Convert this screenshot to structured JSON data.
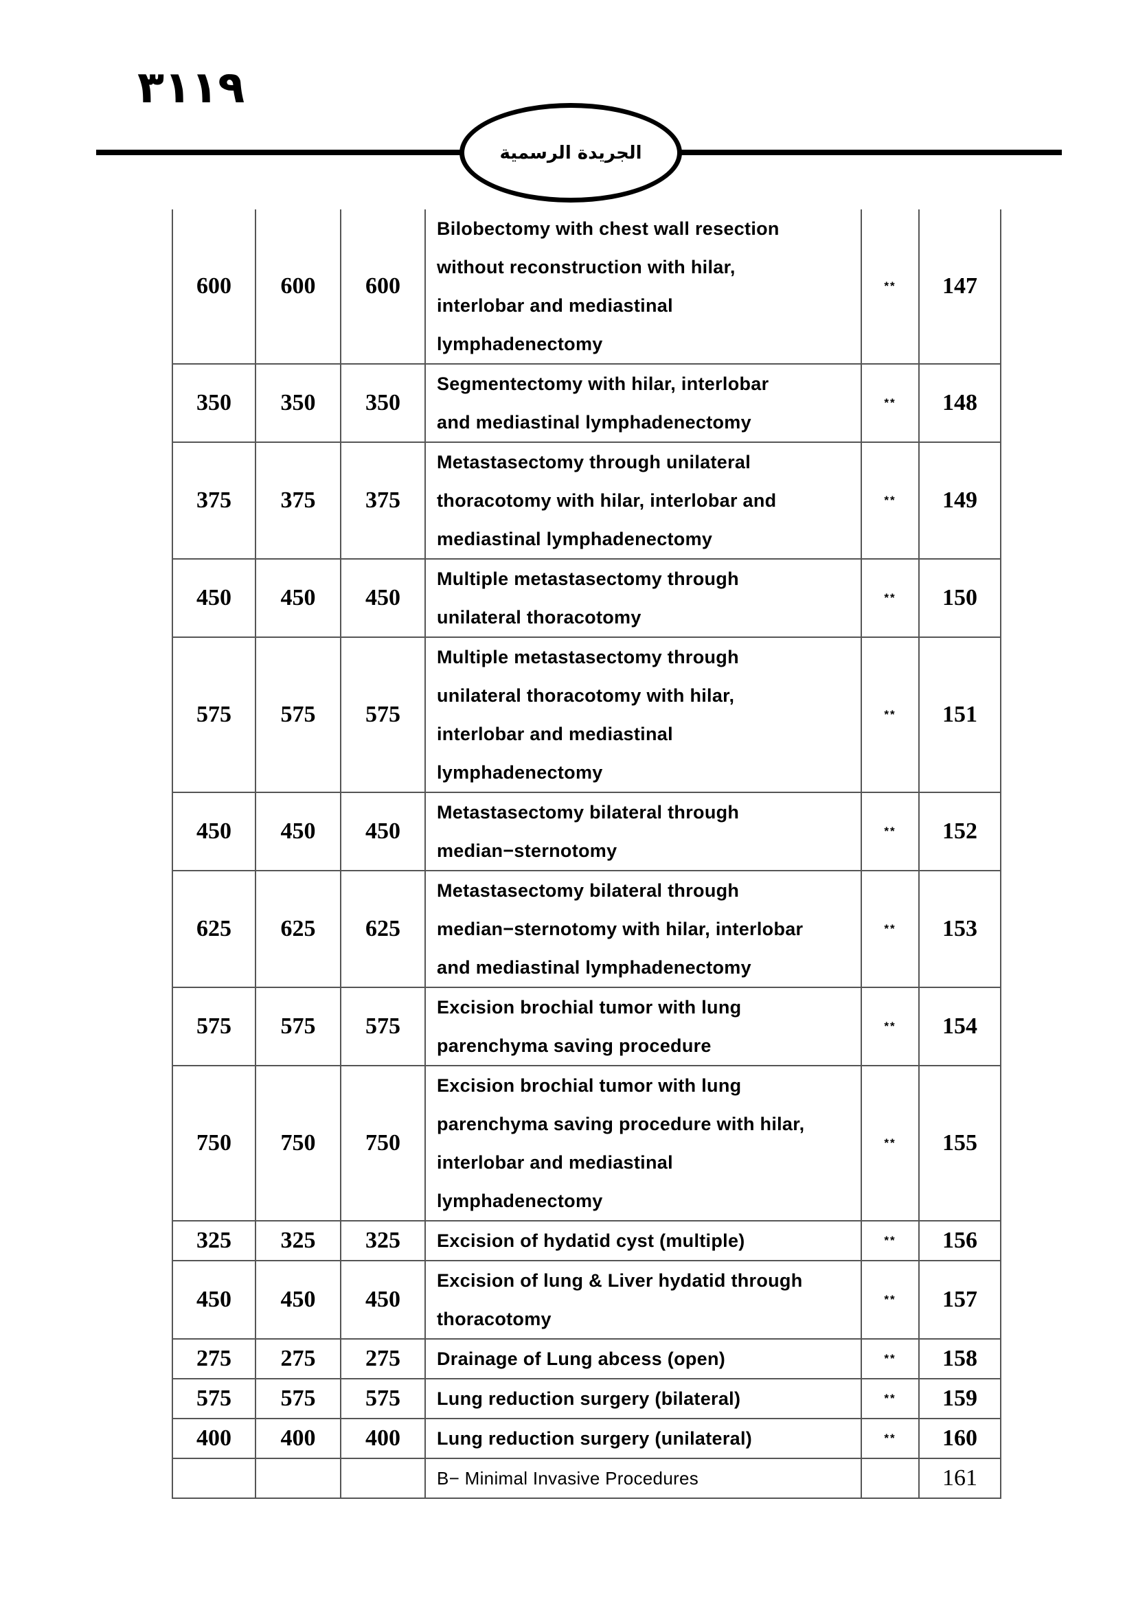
{
  "header": {
    "page_number": "٣١١٩",
    "gazette_title": "الجريدة الرسمية"
  },
  "table": {
    "rows": [
      {
        "v1": "600",
        "v2": "600",
        "v3": "600",
        "lines": [
          "Bilobectomy with chest wall resection",
          "without reconstruction with hilar,",
          "interlobar and mediastinal",
          "lymphadenectomy"
        ],
        "code": "**",
        "no": "147"
      },
      {
        "v1": "350",
        "v2": "350",
        "v3": "350",
        "lines": [
          "Segmentectomy with hilar, interlobar",
          "and mediastinal lymphadenectomy"
        ],
        "code": "**",
        "no": "148"
      },
      {
        "v1": "375",
        "v2": "375",
        "v3": "375",
        "lines": [
          "Metastasectomy through unilateral",
          "thoracotomy with hilar, interlobar and",
          "mediastinal lymphadenectomy"
        ],
        "code": "**",
        "no": "149"
      },
      {
        "v1": "450",
        "v2": "450",
        "v3": "450",
        "lines": [
          "Multiple metastasectomy through",
          "unilateral thoracotomy"
        ],
        "code": "**",
        "no": "150"
      },
      {
        "v1": "575",
        "v2": "575",
        "v3": "575",
        "lines": [
          "Multiple metastasectomy through",
          "unilateral thoracotomy with hilar,",
          "interlobar and mediastinal",
          "lymphadenectomy"
        ],
        "code": "**",
        "no": "151"
      },
      {
        "v1": "450",
        "v2": "450",
        "v3": "450",
        "lines": [
          "Metastasectomy bilateral through",
          "median−sternotomy"
        ],
        "code": "**",
        "no": "152"
      },
      {
        "v1": "625",
        "v2": "625",
        "v3": "625",
        "lines": [
          "Metastasectomy bilateral through",
          "median−sternotomy with hilar, interlobar",
          "and mediastinal lymphadenectomy"
        ],
        "code": "**",
        "no": "153"
      },
      {
        "v1": "575",
        "v2": "575",
        "v3": "575",
        "lines": [
          "Excision brochial tumor with lung",
          "parenchyma saving procedure"
        ],
        "code": "**",
        "no": "154"
      },
      {
        "v1": "750",
        "v2": "750",
        "v3": "750",
        "lines": [
          "Excision brochial tumor with lung",
          "parenchyma saving procedure with hilar,",
          "interlobar and mediastinal",
          "lymphadenectomy"
        ],
        "code": "**",
        "no": "155"
      },
      {
        "v1": "325",
        "v2": "325",
        "v3": "325",
        "lines": [
          "Excision of hydatid cyst (multiple)"
        ],
        "code": "**",
        "no": "156"
      },
      {
        "v1": "450",
        "v2": "450",
        "v3": "450",
        "lines": [
          "Excision of lung & Liver hydatid through",
          "thoracotomy"
        ],
        "code": "**",
        "no": "157"
      },
      {
        "v1": "275",
        "v2": "275",
        "v3": "275",
        "lines": [
          "Drainage of Lung abcess (open)"
        ],
        "code": "**",
        "no": "158"
      },
      {
        "v1": "575",
        "v2": "575",
        "v3": "575",
        "lines": [
          "Lung reduction surgery (bilateral)"
        ],
        "code": "**",
        "no": "159"
      },
      {
        "v1": "400",
        "v2": "400",
        "v3": "400",
        "lines": [
          "Lung reduction surgery (unilateral)"
        ],
        "code": "**",
        "no": "160"
      },
      {
        "v1": "",
        "v2": "",
        "v3": "",
        "lines": [
          "B−  Minimal Invasive Procedures"
        ],
        "code": "",
        "no": "161",
        "section": true
      }
    ]
  }
}
